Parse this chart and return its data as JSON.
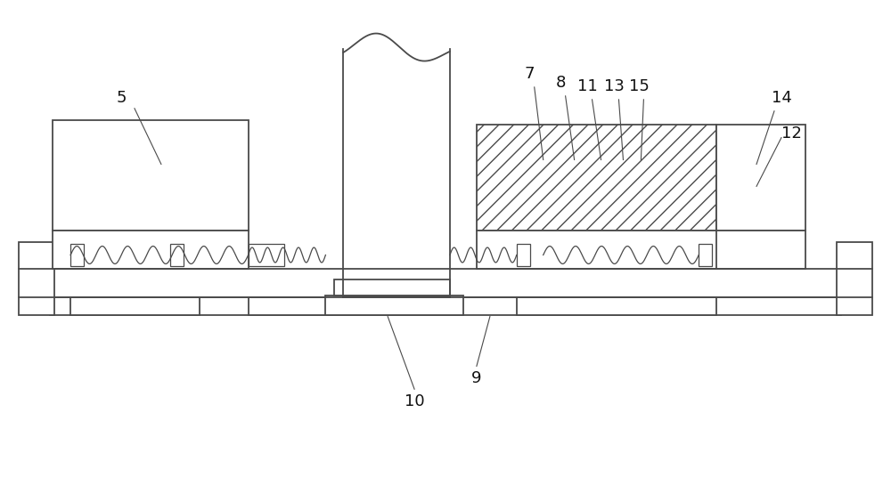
{
  "bg_color": "#ffffff",
  "line_color": "#4a4a4a",
  "label_color": "#111111",
  "label_fontsize": 13
}
